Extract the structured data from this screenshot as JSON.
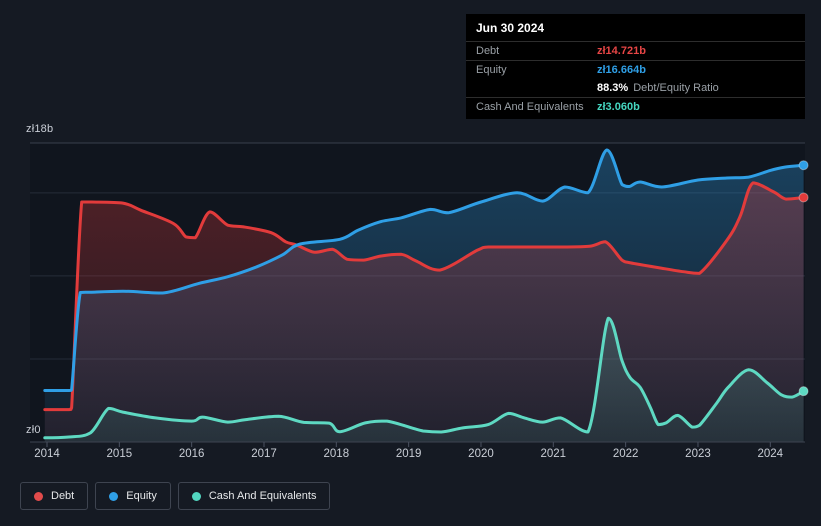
{
  "tooltip": {
    "date": "Jun 30 2024",
    "debt_label": "Debt",
    "debt_value": "zł14.721b",
    "equity_label": "Equity",
    "equity_value": "zł16.664b",
    "ratio_value": "88.3%",
    "ratio_label": "Debt/Equity Ratio",
    "cash_label": "Cash And Equivalents",
    "cash_value": "zł3.060b"
  },
  "legend": {
    "items": [
      {
        "label": "Debt",
        "color": "#e14b4b"
      },
      {
        "label": "Equity",
        "color": "#2f9fe6"
      },
      {
        "label": "Cash And Equivalents",
        "color": "#52d6c0"
      }
    ]
  },
  "chart_data": {
    "type": "area",
    "title": "",
    "xlabel": "",
    "ylabel": "",
    "ylim": [
      0,
      18
    ],
    "xlim": [
      2013.97,
      2024.5
    ],
    "grid": true,
    "y_axis": {
      "top_label": "zł18b",
      "bottom_label": "zł0",
      "top_value": 18,
      "gridline_values": [
        5,
        10,
        15
      ]
    },
    "x_ticks": [
      "2014",
      "2015",
      "2016",
      "2017",
      "2018",
      "2019",
      "2020",
      "2021",
      "2022",
      "2023",
      "2024"
    ],
    "series": [
      {
        "name": "Debt",
        "color": "#e23b3b",
        "points": [
          [
            2013.97,
            1.95
          ],
          [
            2014.3,
            1.95
          ],
          [
            2014.34,
            2.05
          ],
          [
            2014.48,
            14.45
          ],
          [
            2014.62,
            14.45
          ],
          [
            2015.05,
            14.38
          ],
          [
            2015.3,
            13.95
          ],
          [
            2015.75,
            13.15
          ],
          [
            2015.92,
            12.35
          ],
          [
            2016.05,
            12.3
          ],
          [
            2016.25,
            13.85
          ],
          [
            2016.5,
            13.05
          ],
          [
            2016.72,
            12.95
          ],
          [
            2017.1,
            12.6
          ],
          [
            2017.3,
            12.05
          ],
          [
            2017.45,
            11.86
          ],
          [
            2017.7,
            11.42
          ],
          [
            2017.95,
            11.6
          ],
          [
            2018.15,
            11.0
          ],
          [
            2018.38,
            10.95
          ],
          [
            2018.62,
            11.2
          ],
          [
            2018.9,
            11.3
          ],
          [
            2019.1,
            10.9
          ],
          [
            2019.43,
            10.35
          ],
          [
            2019.95,
            11.55
          ],
          [
            2020.1,
            11.74
          ],
          [
            2020.6,
            11.74
          ],
          [
            2021.1,
            11.74
          ],
          [
            2021.5,
            11.78
          ],
          [
            2021.72,
            12.05
          ],
          [
            2021.95,
            10.95
          ],
          [
            2022.05,
            10.8
          ],
          [
            2022.45,
            10.5
          ],
          [
            2022.8,
            10.25
          ],
          [
            2023.02,
            10.15
          ],
          [
            2023.4,
            12.15
          ],
          [
            2023.58,
            13.55
          ],
          [
            2023.76,
            15.6
          ],
          [
            2024.05,
            15.05
          ],
          [
            2024.22,
            14.62
          ],
          [
            2024.46,
            14.721
          ]
        ]
      },
      {
        "name": "Equity",
        "color": "#2f9fe6",
        "points": [
          [
            2013.97,
            3.1
          ],
          [
            2014.3,
            3.1
          ],
          [
            2014.34,
            3.15
          ],
          [
            2014.46,
            9.0
          ],
          [
            2014.62,
            9.02
          ],
          [
            2015.05,
            9.08
          ],
          [
            2015.6,
            8.97
          ],
          [
            2016.1,
            9.55
          ],
          [
            2016.5,
            9.95
          ],
          [
            2016.9,
            10.55
          ],
          [
            2017.25,
            11.25
          ],
          [
            2017.5,
            11.92
          ],
          [
            2018.05,
            12.2
          ],
          [
            2018.3,
            12.75
          ],
          [
            2018.6,
            13.25
          ],
          [
            2018.9,
            13.5
          ],
          [
            2019.3,
            14.0
          ],
          [
            2019.55,
            13.8
          ],
          [
            2020.0,
            14.45
          ],
          [
            2020.5,
            15.0
          ],
          [
            2020.85,
            14.5
          ],
          [
            2021.16,
            15.35
          ],
          [
            2021.48,
            15.0
          ],
          [
            2021.74,
            17.58
          ],
          [
            2021.95,
            15.5
          ],
          [
            2022.05,
            15.38
          ],
          [
            2022.2,
            15.65
          ],
          [
            2022.5,
            15.35
          ],
          [
            2023.0,
            15.77
          ],
          [
            2023.4,
            15.89
          ],
          [
            2023.7,
            15.95
          ],
          [
            2024.0,
            16.35
          ],
          [
            2024.2,
            16.55
          ],
          [
            2024.46,
            16.664
          ]
        ]
      },
      {
        "name": "Cash And Equivalents",
        "color": "#5ed9c2",
        "points": [
          [
            2013.97,
            0.25
          ],
          [
            2014.3,
            0.3
          ],
          [
            2014.6,
            0.55
          ],
          [
            2014.85,
            2.02
          ],
          [
            2015.05,
            1.8
          ],
          [
            2015.5,
            1.45
          ],
          [
            2016.0,
            1.26
          ],
          [
            2016.15,
            1.5
          ],
          [
            2016.5,
            1.2
          ],
          [
            2016.75,
            1.35
          ],
          [
            2017.2,
            1.55
          ],
          [
            2017.55,
            1.18
          ],
          [
            2017.9,
            1.14
          ],
          [
            2018.05,
            0.62
          ],
          [
            2018.4,
            1.15
          ],
          [
            2018.7,
            1.26
          ],
          [
            2019.2,
            0.66
          ],
          [
            2019.45,
            0.6
          ],
          [
            2019.75,
            0.85
          ],
          [
            2020.1,
            1.05
          ],
          [
            2020.38,
            1.72
          ],
          [
            2020.6,
            1.45
          ],
          [
            2020.85,
            1.2
          ],
          [
            2021.1,
            1.45
          ],
          [
            2021.48,
            0.6
          ],
          [
            2021.76,
            7.45
          ],
          [
            2021.95,
            4.9
          ],
          [
            2022.06,
            3.88
          ],
          [
            2022.2,
            3.3
          ],
          [
            2022.34,
            2.1
          ],
          [
            2022.45,
            1.05
          ],
          [
            2022.56,
            1.15
          ],
          [
            2022.72,
            1.6
          ],
          [
            2022.92,
            0.9
          ],
          [
            2023.02,
            1.0
          ],
          [
            2023.26,
            2.35
          ],
          [
            2023.42,
            3.3
          ],
          [
            2023.7,
            4.35
          ],
          [
            2023.96,
            3.55
          ],
          [
            2024.15,
            2.85
          ],
          [
            2024.3,
            2.7
          ],
          [
            2024.46,
            3.06
          ]
        ]
      }
    ],
    "legend_position": "bottom",
    "end_markers": true
  }
}
